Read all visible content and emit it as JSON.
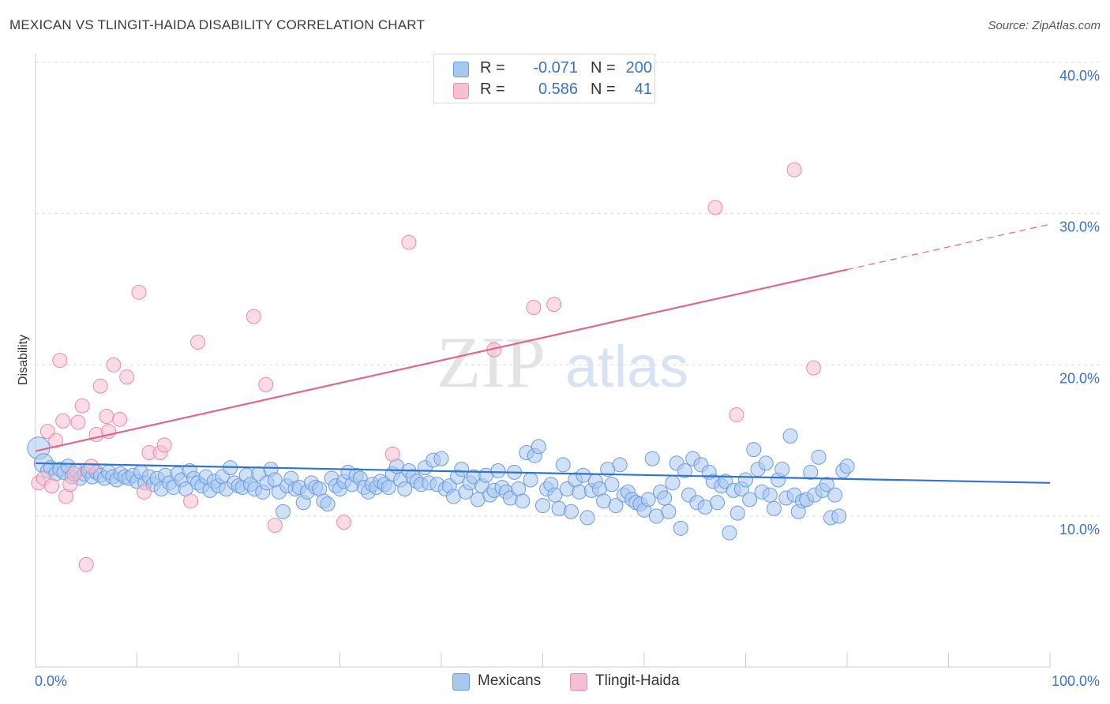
{
  "title": "MEXICAN VS TLINGIT-HAIDA DISABILITY CORRELATION CHART",
  "source": "Source: ZipAtlas.com",
  "watermark": {
    "zip": "ZIP",
    "atlas": "atlas"
  },
  "legend": {
    "rows": [
      {
        "r_label": "R =",
        "r_value": "-0.071",
        "n_label": "N =",
        "n_value": "200",
        "color": "#a9c8f0",
        "stroke": "#6a9be0"
      },
      {
        "r_label": "R =",
        "r_value": "0.586",
        "n_label": "N =",
        "n_value": "41",
        "color": "#f7bfd2",
        "stroke": "#e88aa8"
      }
    ]
  },
  "bottom_legend": [
    {
      "label": "Mexicans",
      "color": "#a9c8f0",
      "stroke": "#6a9be0"
    },
    {
      "label": "Tlingit-Haida",
      "color": "#f7bfd2",
      "stroke": "#e88aa8"
    }
  ],
  "chart_data": {
    "type": "scatter",
    "title": "MEXICAN VS TLINGIT-HAIDA DISABILITY CORRELATION CHART",
    "xlabel": "",
    "ylabel": "Disability",
    "xlim": [
      0,
      100
    ],
    "ylim": [
      0,
      40
    ],
    "x_tick_labels": [
      "0.0%",
      "100.0%"
    ],
    "y_ticks": [
      10,
      20,
      30,
      40
    ],
    "y_tick_labels": [
      "10.0%",
      "20.0%",
      "30.0%",
      "40.0%"
    ],
    "grid": true,
    "series": [
      {
        "name": "Mexicans",
        "color": "#6a9be0",
        "fill": "#a9c8f0",
        "trend": {
          "x": [
            0,
            100
          ],
          "y": [
            13.5,
            12.2
          ],
          "color": "#2f74d0"
        },
        "points": [
          [
            0.3,
            14.5
          ],
          [
            0.8,
            13.5
          ],
          [
            1.2,
            13.0
          ],
          [
            1.5,
            13.2
          ],
          [
            2.0,
            12.8
          ],
          [
            2.4,
            13.1
          ],
          [
            2.8,
            12.9
          ],
          [
            3.2,
            13.3
          ],
          [
            3.6,
            12.6
          ],
          [
            4.0,
            13.0
          ],
          [
            4.4,
            12.5
          ],
          [
            4.8,
            12.8
          ],
          [
            5.2,
            13.0
          ],
          [
            5.6,
            12.6
          ],
          [
            6.0,
            12.9
          ],
          [
            6.4,
            12.7
          ],
          [
            6.8,
            12.5
          ],
          [
            7.2,
            12.9
          ],
          [
            7.6,
            12.6
          ],
          [
            8.0,
            12.4
          ],
          [
            8.4,
            12.8
          ],
          [
            8.8,
            12.6
          ],
          [
            9.2,
            12.5
          ],
          [
            9.6,
            12.7
          ],
          [
            10.0,
            12.3
          ],
          [
            10.4,
            12.9
          ],
          [
            10.8,
            12.2
          ],
          [
            11.2,
            12.6
          ],
          [
            11.6,
            12.1
          ],
          [
            12.0,
            12.5
          ],
          [
            12.4,
            11.8
          ],
          [
            12.8,
            12.7
          ],
          [
            13.2,
            12.2
          ],
          [
            13.6,
            11.9
          ],
          [
            14.0,
            12.8
          ],
          [
            14.4,
            12.4
          ],
          [
            14.8,
            11.8
          ],
          [
            15.2,
            13.0
          ],
          [
            15.6,
            12.5
          ],
          [
            16.0,
            12.2
          ],
          [
            16.4,
            12.0
          ],
          [
            16.8,
            12.6
          ],
          [
            17.2,
            11.7
          ],
          [
            17.6,
            12.3
          ],
          [
            18.0,
            12.0
          ],
          [
            18.4,
            12.6
          ],
          [
            18.8,
            11.8
          ],
          [
            19.2,
            13.2
          ],
          [
            19.6,
            12.2
          ],
          [
            20.0,
            12.0
          ],
          [
            20.4,
            11.9
          ],
          [
            20.8,
            12.7
          ],
          [
            21.2,
            12.1
          ],
          [
            21.6,
            11.8
          ],
          [
            22.0,
            12.8
          ],
          [
            22.4,
            11.6
          ],
          [
            22.8,
            12.2
          ],
          [
            23.2,
            13.1
          ],
          [
            23.6,
            12.4
          ],
          [
            24.0,
            11.6
          ],
          [
            24.4,
            10.3
          ],
          [
            24.8,
            12.0
          ],
          [
            25.2,
            12.5
          ],
          [
            25.6,
            11.8
          ],
          [
            26.0,
            11.9
          ],
          [
            26.4,
            10.9
          ],
          [
            26.8,
            11.6
          ],
          [
            27.2,
            12.2
          ],
          [
            27.6,
            11.9
          ],
          [
            28.0,
            11.8
          ],
          [
            28.4,
            11.0
          ],
          [
            28.8,
            10.8
          ],
          [
            29.2,
            12.5
          ],
          [
            29.6,
            12.0
          ],
          [
            30.0,
            11.8
          ],
          [
            30.4,
            12.3
          ],
          [
            30.8,
            12.9
          ],
          [
            31.2,
            12.1
          ],
          [
            31.6,
            12.7
          ],
          [
            32.0,
            12.5
          ],
          [
            32.4,
            11.9
          ],
          [
            32.8,
            11.6
          ],
          [
            33.2,
            12.1
          ],
          [
            33.6,
            11.9
          ],
          [
            34.0,
            12.3
          ],
          [
            34.4,
            12.1
          ],
          [
            34.8,
            11.9
          ],
          [
            35.2,
            12.8
          ],
          [
            35.6,
            13.3
          ],
          [
            36.0,
            12.4
          ],
          [
            36.4,
            11.8
          ],
          [
            36.8,
            13.0
          ],
          [
            37.2,
            12.6
          ],
          [
            37.6,
            12.3
          ],
          [
            38.0,
            12.1
          ],
          [
            38.4,
            13.2
          ],
          [
            38.8,
            12.2
          ],
          [
            39.2,
            13.7
          ],
          [
            39.6,
            12.1
          ],
          [
            40.0,
            13.8
          ],
          [
            40.4,
            11.8
          ],
          [
            40.8,
            12.0
          ],
          [
            41.2,
            11.3
          ],
          [
            41.6,
            12.6
          ],
          [
            42.0,
            13.1
          ],
          [
            42.4,
            11.6
          ],
          [
            42.8,
            12.2
          ],
          [
            43.2,
            12.6
          ],
          [
            43.6,
            11.1
          ],
          [
            44.0,
            12.0
          ],
          [
            44.4,
            12.7
          ],
          [
            44.8,
            11.4
          ],
          [
            45.2,
            11.7
          ],
          [
            45.6,
            13.0
          ],
          [
            46.0,
            11.9
          ],
          [
            46.4,
            11.6
          ],
          [
            46.8,
            11.2
          ],
          [
            47.2,
            12.9
          ],
          [
            47.6,
            11.8
          ],
          [
            48.0,
            11.0
          ],
          [
            48.4,
            14.2
          ],
          [
            48.8,
            12.4
          ],
          [
            49.2,
            14.0
          ],
          [
            49.6,
            14.6
          ],
          [
            50.0,
            10.7
          ],
          [
            50.4,
            11.8
          ],
          [
            50.8,
            12.1
          ],
          [
            51.2,
            11.4
          ],
          [
            51.6,
            10.5
          ],
          [
            52.0,
            13.4
          ],
          [
            52.4,
            11.8
          ],
          [
            52.8,
            10.3
          ],
          [
            53.2,
            12.4
          ],
          [
            53.6,
            11.6
          ],
          [
            54.0,
            12.7
          ],
          [
            54.4,
            9.9
          ],
          [
            54.8,
            11.7
          ],
          [
            55.2,
            12.3
          ],
          [
            55.6,
            11.8
          ],
          [
            56.0,
            11.0
          ],
          [
            56.4,
            13.1
          ],
          [
            56.8,
            12.1
          ],
          [
            57.2,
            10.7
          ],
          [
            57.6,
            13.4
          ],
          [
            58.0,
            11.4
          ],
          [
            58.4,
            11.6
          ],
          [
            58.8,
            11.1
          ],
          [
            59.2,
            10.9
          ],
          [
            59.6,
            10.8
          ],
          [
            60.0,
            10.4
          ],
          [
            60.4,
            11.1
          ],
          [
            60.8,
            13.8
          ],
          [
            61.2,
            10.0
          ],
          [
            61.6,
            11.6
          ],
          [
            62.0,
            11.2
          ],
          [
            62.4,
            10.3
          ],
          [
            62.8,
            12.2
          ],
          [
            63.2,
            13.5
          ],
          [
            63.6,
            9.2
          ],
          [
            64.0,
            13.0
          ],
          [
            64.4,
            11.4
          ],
          [
            64.8,
            13.8
          ],
          [
            65.2,
            10.9
          ],
          [
            65.6,
            13.4
          ],
          [
            66.0,
            10.6
          ],
          [
            66.4,
            12.9
          ],
          [
            66.8,
            12.3
          ],
          [
            67.2,
            10.9
          ],
          [
            67.6,
            12.0
          ],
          [
            68.0,
            12.3
          ],
          [
            68.4,
            8.9
          ],
          [
            68.8,
            11.7
          ],
          [
            69.2,
            10.2
          ],
          [
            69.6,
            11.8
          ],
          [
            70.0,
            12.4
          ],
          [
            70.4,
            11.1
          ],
          [
            70.8,
            14.4
          ],
          [
            71.2,
            13.1
          ],
          [
            71.6,
            11.6
          ],
          [
            72.0,
            13.5
          ],
          [
            72.4,
            11.4
          ],
          [
            72.8,
            10.5
          ],
          [
            73.2,
            12.4
          ],
          [
            73.6,
            13.1
          ],
          [
            74.0,
            11.2
          ],
          [
            74.4,
            15.3
          ],
          [
            74.8,
            11.4
          ],
          [
            75.2,
            10.3
          ],
          [
            75.6,
            11.0
          ],
          [
            76.0,
            11.1
          ],
          [
            76.4,
            12.9
          ],
          [
            76.8,
            11.4
          ],
          [
            77.2,
            13.9
          ],
          [
            77.6,
            11.7
          ],
          [
            78.0,
            12.1
          ],
          [
            78.4,
            9.9
          ],
          [
            78.8,
            11.4
          ],
          [
            79.2,
            10.0
          ],
          [
            79.6,
            13.0
          ],
          [
            80.0,
            13.3
          ]
        ]
      },
      {
        "name": "Tlingit-Haida",
        "color": "#e88aa8",
        "fill": "#f7bfd2",
        "trend": {
          "x": [
            0,
            80
          ],
          "y": [
            14.3,
            26.3
          ],
          "dash_x": [
            80,
            100
          ],
          "dash_y": [
            26.3,
            29.3
          ],
          "color": "#e0668f"
        },
        "points": [
          [
            0.3,
            12.2
          ],
          [
            0.8,
            12.5
          ],
          [
            1.2,
            15.6
          ],
          [
            1.6,
            12.0
          ],
          [
            2.0,
            15.0
          ],
          [
            2.4,
            20.3
          ],
          [
            2.7,
            16.3
          ],
          [
            3.0,
            11.3
          ],
          [
            3.4,
            12.1
          ],
          [
            3.8,
            12.8
          ],
          [
            4.2,
            16.2
          ],
          [
            4.6,
            17.3
          ],
          [
            5.0,
            6.8
          ],
          [
            5.5,
            13.3
          ],
          [
            6.0,
            15.4
          ],
          [
            6.4,
            18.6
          ],
          [
            7.0,
            16.6
          ],
          [
            7.2,
            15.6
          ],
          [
            7.7,
            20.0
          ],
          [
            8.3,
            16.4
          ],
          [
            9.0,
            19.2
          ],
          [
            10.2,
            24.8
          ],
          [
            10.7,
            11.6
          ],
          [
            11.2,
            14.2
          ],
          [
            12.3,
            14.2
          ],
          [
            12.7,
            14.7
          ],
          [
            15.3,
            11.0
          ],
          [
            16.0,
            21.5
          ],
          [
            21.5,
            23.2
          ],
          [
            22.7,
            18.7
          ],
          [
            23.6,
            9.4
          ],
          [
            30.4,
            9.6
          ],
          [
            35.2,
            14.1
          ],
          [
            36.8,
            28.1
          ],
          [
            45.2,
            21.0
          ],
          [
            49.1,
            23.8
          ],
          [
            51.1,
            24.0
          ],
          [
            67.0,
            30.4
          ],
          [
            69.1,
            16.7
          ],
          [
            74.8,
            32.9
          ],
          [
            76.7,
            19.8
          ]
        ]
      }
    ]
  }
}
